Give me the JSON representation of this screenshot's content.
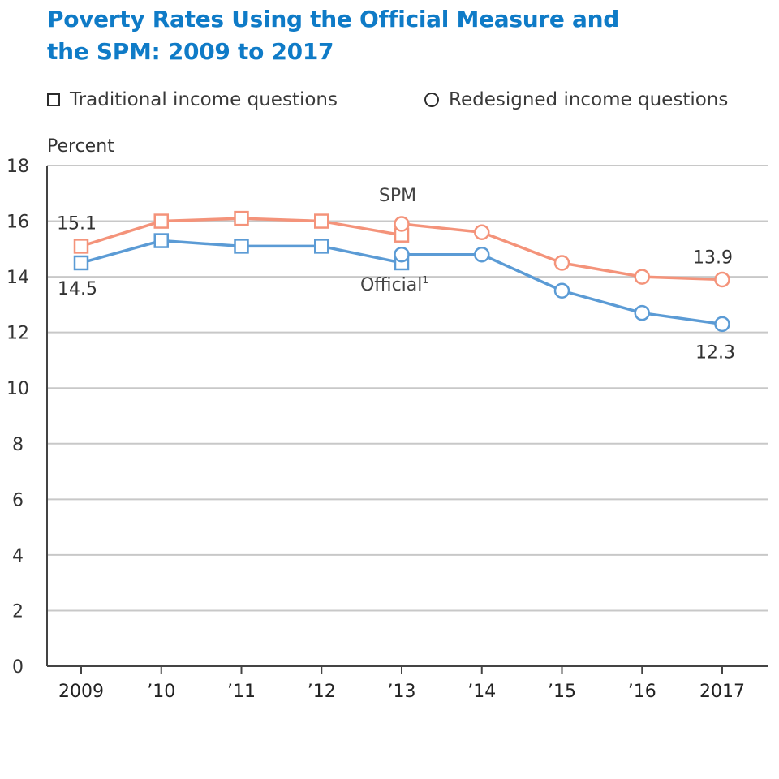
{
  "chart_data": {
    "type": "line",
    "title": [
      "Poverty Rates Using the Official Measure and",
      "the SPM: 2009 to 2017"
    ],
    "ylabel": "Percent",
    "ylim": [
      0,
      18
    ],
    "yticks": [
      "0",
      "2",
      "4",
      "6",
      "8",
      "10",
      "12",
      "14",
      "16",
      "18"
    ],
    "categories": [
      "2009",
      "’10",
      "’11",
      "’12",
      "’13",
      "’14",
      "’15",
      "’16",
      "2017"
    ],
    "grid": "horizontal",
    "legend": {
      "placement": "top",
      "items": [
        {
          "marker": "square",
          "label": "Traditional income questions"
        },
        {
          "marker": "circle",
          "label": "Redesigned income questions"
        }
      ]
    },
    "series": [
      {
        "name": "SPM",
        "color": "#f4937a",
        "traditional": {
          "x": [
            "2009",
            "’10",
            "’11",
            "’12",
            "’13"
          ],
          "y": [
            15.1,
            16.0,
            16.1,
            16.0,
            15.5
          ]
        },
        "redesigned": {
          "x": [
            "’13",
            "’14",
            "’15",
            "’16",
            "2017"
          ],
          "y": [
            15.9,
            15.6,
            14.5,
            14.0,
            13.9
          ]
        }
      },
      {
        "name": "Official",
        "superscript": "1",
        "color": "#5b9bd5",
        "traditional": {
          "x": [
            "2009",
            "’10",
            "’11",
            "’12",
            "’13"
          ],
          "y": [
            14.5,
            15.3,
            15.1,
            15.1,
            14.5
          ]
        },
        "redesigned": {
          "x": [
            "’13",
            "’14",
            "’15",
            "’16",
            "2017"
          ],
          "y": [
            14.8,
            14.8,
            13.5,
            12.7,
            12.3
          ]
        }
      }
    ],
    "data_labels": [
      {
        "series": "SPM",
        "x": "2009",
        "text": "15.1"
      },
      {
        "series": "Official",
        "x": "2009",
        "text": "14.5"
      },
      {
        "series": "SPM",
        "x": "2017",
        "text": "13.9"
      },
      {
        "series": "Official",
        "x": "2017",
        "text": "12.3"
      }
    ]
  }
}
